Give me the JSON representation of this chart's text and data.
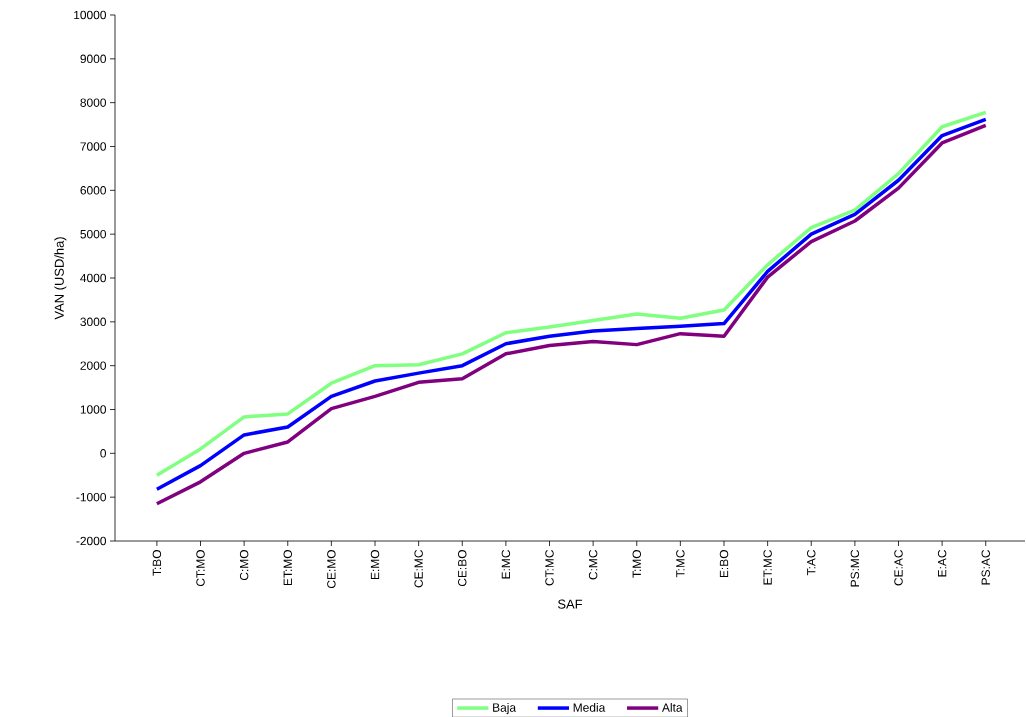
{
  "chart_data": {
    "type": "line",
    "xlabel": "SAF",
    "ylabel": "VAN (USD/ha)",
    "categories": [
      "T:BO",
      "CT:MO",
      "C:MO",
      "ET:MO",
      "CE:MO",
      "E:MO",
      "CE:MC",
      "CE:BO",
      "E:MC",
      "CT:MC",
      "C:MC",
      "T:MO",
      "T:MC",
      "E:BO",
      "ET:MC",
      "T:AC",
      "PS:MC",
      "CE:AC",
      "E:AC",
      "PS:AC"
    ],
    "series": [
      {
        "name": "Baja",
        "color": "#80ff80",
        "values": [
          -500,
          100,
          830,
          900,
          1600,
          2000,
          2020,
          2270,
          2750,
          2880,
          3030,
          3180,
          3080,
          3270,
          4300,
          5150,
          5550,
          6380,
          7450,
          7780
        ]
      },
      {
        "name": "Media",
        "color": "#0000ff",
        "values": [
          -820,
          -280,
          420,
          600,
          1300,
          1650,
          1830,
          2000,
          2500,
          2670,
          2790,
          2850,
          2900,
          2960,
          4150,
          5000,
          5450,
          6230,
          7250,
          7620
        ]
      },
      {
        "name": "Alta",
        "color": "#800080",
        "values": [
          -1150,
          -650,
          0,
          260,
          1020,
          1300,
          1620,
          1700,
          2270,
          2460,
          2550,
          2480,
          2730,
          2670,
          4020,
          4830,
          5300,
          6050,
          7080,
          7480
        ]
      }
    ],
    "ylim": [
      -2000,
      10000
    ],
    "yticks": [
      -2000,
      -1000,
      0,
      1000,
      2000,
      3000,
      4000,
      5000,
      6000,
      7000,
      8000,
      9000,
      10000
    ],
    "grid": false,
    "legend": "bottom",
    "marker": "none",
    "line_style": "solid"
  }
}
